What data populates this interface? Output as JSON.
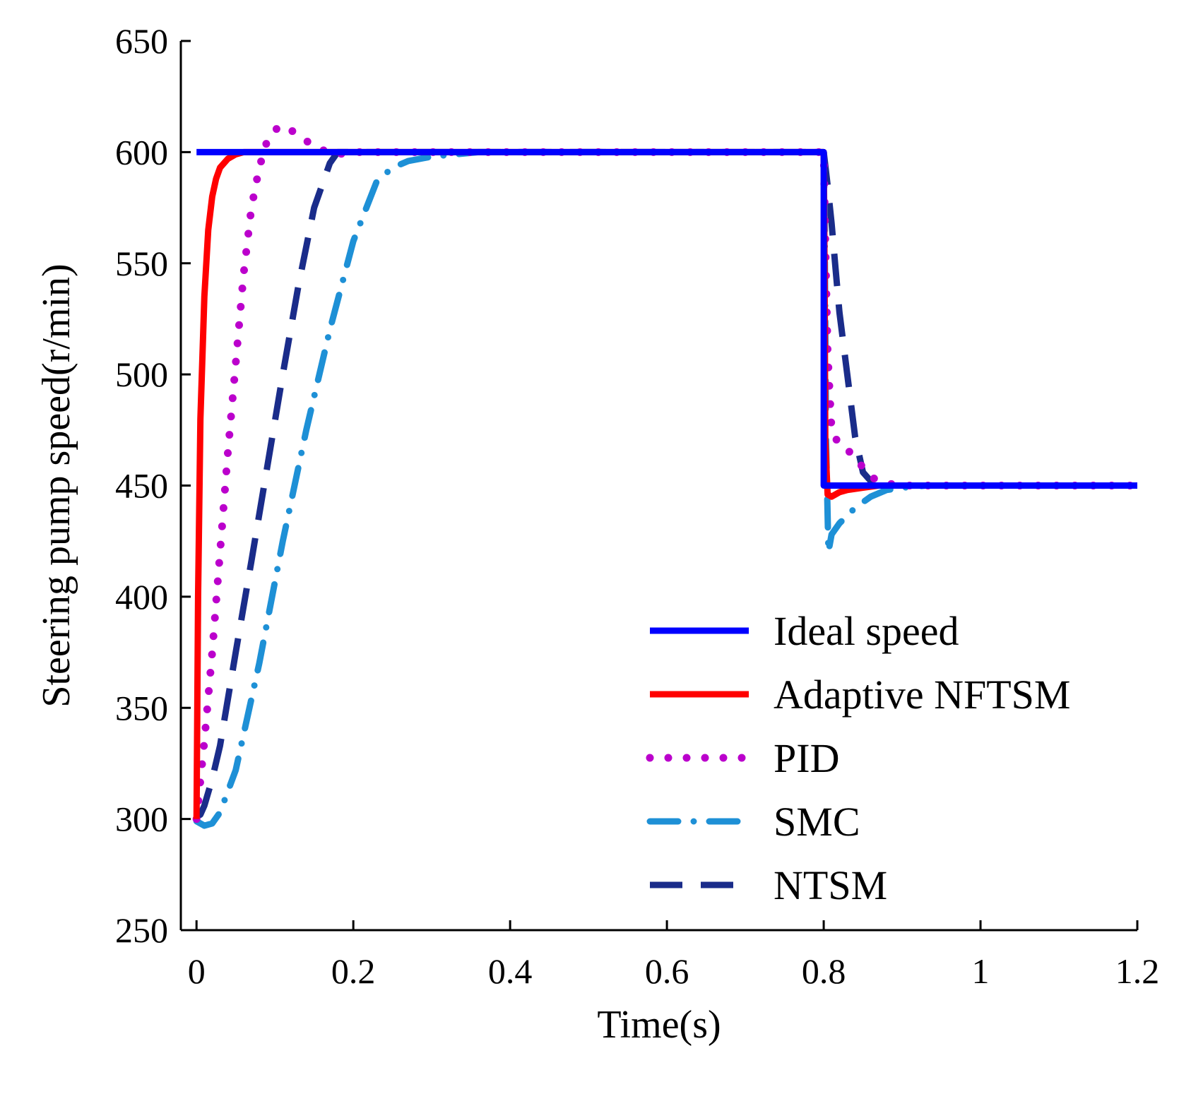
{
  "chart_data": {
    "type": "line",
    "title": "",
    "xlabel": "Time(s)",
    "ylabel": "Steering pump speed(r/min)",
    "xlim": [
      0,
      1.2
    ],
    "ylim": [
      250,
      650
    ],
    "xticks": [
      0,
      0.2,
      0.4,
      0.6,
      0.8,
      1,
      1.2
    ],
    "xtick_labels": [
      "0",
      "0.2",
      "0.4",
      "0.6",
      "0.8",
      "1",
      "1.2"
    ],
    "yticks": [
      250,
      300,
      350,
      400,
      450,
      500,
      550,
      600,
      650
    ],
    "ytick_labels": [
      "250",
      "300",
      "350",
      "400",
      "450",
      "500",
      "550",
      "600",
      "650"
    ],
    "grid": false,
    "legend_position": "bottom-right",
    "series": [
      {
        "name": "Ideal speed",
        "style": "solid",
        "color": "#0000ff",
        "x": [
          0,
          0.8,
          0.8,
          1.2
        ],
        "y": [
          600,
          600,
          450,
          450
        ]
      },
      {
        "name": "Adaptive NFTSM",
        "style": "solid",
        "color": "#ff0000",
        "x": [
          0,
          0.002,
          0.005,
          0.01,
          0.015,
          0.02,
          0.025,
          0.03,
          0.04,
          0.05,
          0.06,
          0.07,
          0.08,
          0.8,
          0.801,
          0.802,
          0.805,
          0.81,
          0.82,
          0.83,
          0.85,
          0.87,
          0.9,
          1.2
        ],
        "y": [
          300,
          400,
          480,
          535,
          565,
          580,
          588,
          593,
          597,
          599,
          600,
          600,
          600,
          600,
          550,
          470,
          446,
          445,
          447,
          448,
          449,
          450,
          450,
          450
        ]
      },
      {
        "name": "PID",
        "style": "dotted",
        "color": "#bb00cc",
        "x": [
          0,
          0.01,
          0.02,
          0.03,
          0.04,
          0.05,
          0.06,
          0.07,
          0.08,
          0.09,
          0.1,
          0.11,
          0.12,
          0.14,
          0.16,
          0.18,
          0.2,
          0.22,
          0.25,
          0.8,
          0.802,
          0.805,
          0.81,
          0.82,
          0.83,
          0.84,
          0.85,
          0.86,
          0.87,
          0.88,
          0.9,
          1.2
        ],
        "y": [
          300,
          335,
          375,
          420,
          465,
          505,
          545,
          575,
          593,
          605,
          610,
          612,
          610,
          605,
          601,
          599,
          600,
          600,
          600,
          600,
          560,
          510,
          475,
          468,
          466,
          463,
          458,
          454,
          452,
          451,
          450,
          450
        ]
      },
      {
        "name": "SMC",
        "style": "dash-dot",
        "color": "#1e90d6",
        "x": [
          0,
          0.01,
          0.02,
          0.03,
          0.05,
          0.08,
          0.11,
          0.14,
          0.17,
          0.2,
          0.23,
          0.25,
          0.27,
          0.3,
          0.33,
          0.36,
          0.4,
          0.8,
          0.801,
          0.803,
          0.806,
          0.81,
          0.82,
          0.84,
          0.86,
          0.88,
          0.9,
          0.93,
          1.2
        ],
        "y": [
          299,
          297,
          298,
          303,
          322,
          370,
          425,
          475,
          520,
          560,
          587,
          593,
          596,
          598,
          599,
          600,
          600,
          600,
          575,
          470,
          420,
          428,
          433,
          440,
          445,
          448,
          449,
          450,
          450
        ]
      },
      {
        "name": "NTSM",
        "style": "dashed",
        "color": "#1a2c8a",
        "x": [
          0,
          0.005,
          0.01,
          0.02,
          0.03,
          0.05,
          0.07,
          0.09,
          0.11,
          0.13,
          0.15,
          0.17,
          0.18,
          0.8,
          0.805,
          0.81,
          0.815,
          0.82,
          0.83,
          0.84,
          0.85,
          0.86,
          0.87,
          0.88,
          0.9,
          1.2
        ],
        "y": [
          301,
          302,
          306,
          318,
          333,
          375,
          416,
          458,
          500,
          540,
          575,
          595,
          600,
          600,
          585,
          568,
          548,
          528,
          500,
          472,
          456,
          452,
          450,
          450,
          450,
          450
        ]
      }
    ]
  }
}
